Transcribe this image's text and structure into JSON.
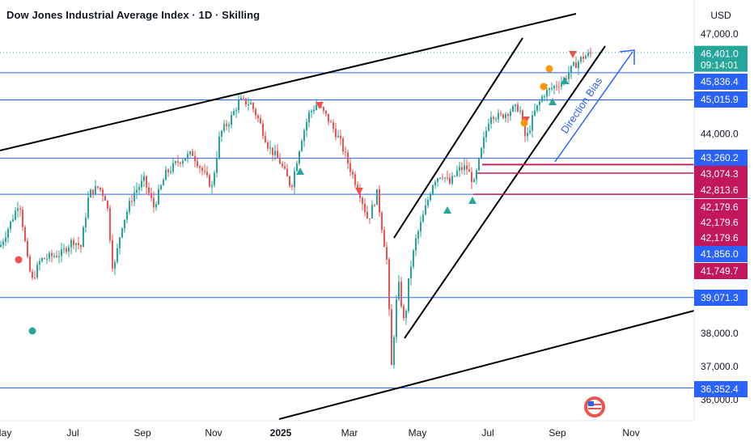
{
  "title": "Dow Jones Industrial Average Index · 1D · Skilling",
  "currency_button": "USD",
  "colors": {
    "up": "#26a69a",
    "down": "#ef5350",
    "hline": "#2962ff",
    "zone": "#c2185b",
    "arrow": "#2962ff",
    "label_blue": "#2962ff",
    "label_red": "#c2185b",
    "label_green": "#26a69a"
  },
  "chart_data": {
    "type": "candlestick",
    "title": "Dow Jones Industrial Average Index · 1D · Skilling",
    "ylim": [
      35800,
      47300
    ],
    "y_ticks": [
      36000,
      37000,
      38000,
      44000,
      47000
    ],
    "y_tick_labels": [
      "36,000.0",
      "37,000.0",
      "38,000.0",
      "44,000.0",
      "47,000.0"
    ],
    "x_tick_labels": [
      "May",
      "Jul",
      "Sep",
      "Nov",
      "2025",
      "Mar",
      "May",
      "Jul",
      "Sep",
      "Nov"
    ],
    "last_price": {
      "value": 46401.0,
      "label": "46,401.0",
      "countdown": "09:14:01"
    },
    "price_labels": [
      {
        "value": 45836.4,
        "label": "45,836.4",
        "style": "blue"
      },
      {
        "value": 45015.9,
        "label": "45,015.9",
        "style": "blue"
      },
      {
        "value": 43260.2,
        "label": "43,260.2",
        "style": "blue"
      },
      {
        "value": 43074.3,
        "label": "43,074.3",
        "style": "red"
      },
      {
        "value": 42813.6,
        "label": "42,813.6",
        "style": "red"
      },
      {
        "value": 42179.6,
        "label": "42,179.6",
        "style": "red"
      },
      {
        "value": 42179.6,
        "label": "42,179.6",
        "style": "red"
      },
      {
        "value": 42179.6,
        "label": "42,179.6",
        "style": "red"
      },
      {
        "value": 41856.0,
        "label": "41,856.0",
        "style": "blue"
      },
      {
        "value": 41749.7,
        "label": "41,749.7",
        "style": "red"
      },
      {
        "value": 39071.3,
        "label": "39,071.3",
        "style": "blue"
      },
      {
        "value": 36352.4,
        "label": "36,352.4",
        "style": "blue"
      }
    ],
    "horizontal_lines": [
      45836.4,
      45015.9,
      43260.2,
      42179.6,
      39071.3,
      36352.4
    ],
    "zones": [
      43260.2,
      43074.3,
      42813.6,
      42179.6
    ],
    "annotation_text": "Direction Bias"
  }
}
